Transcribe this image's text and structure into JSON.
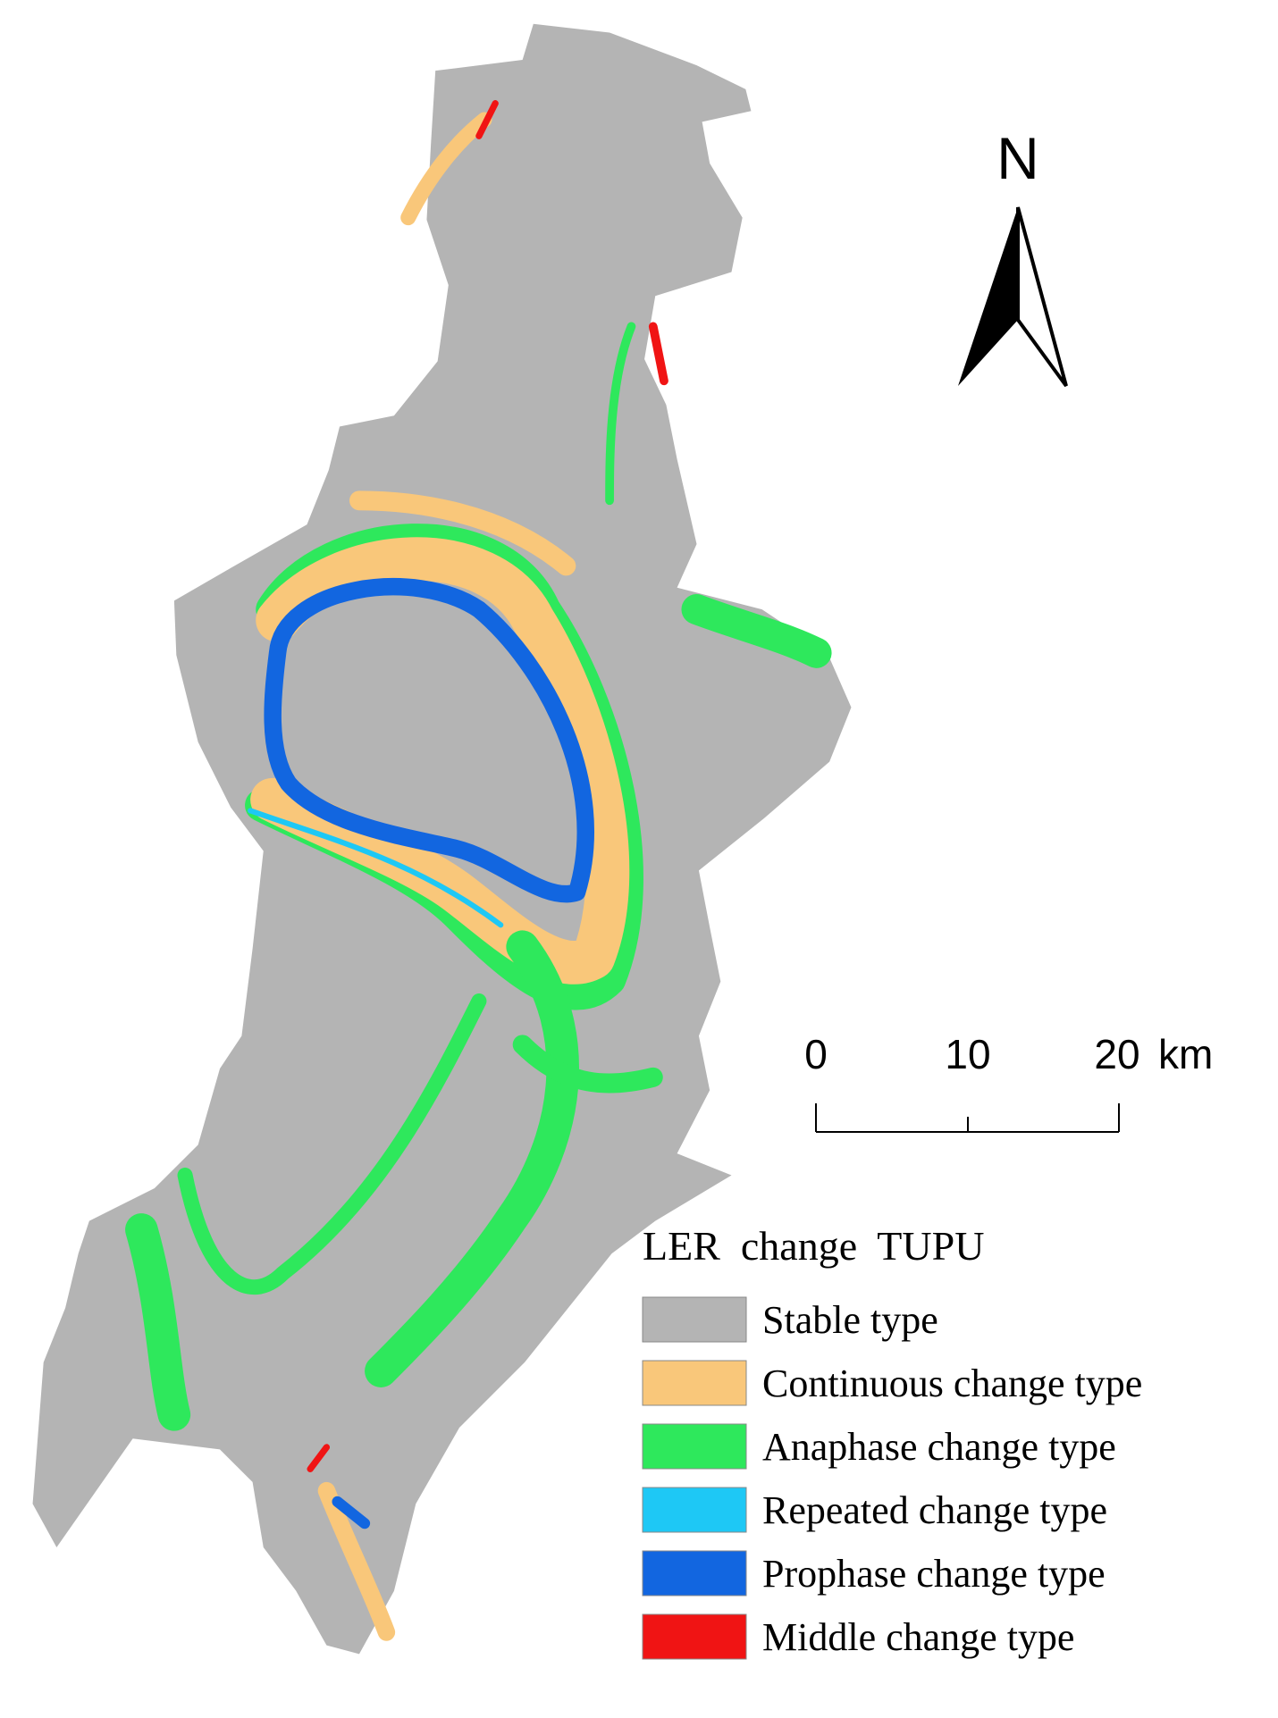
{
  "north": "N",
  "scale_bar": {
    "labels": [
      "0",
      "10",
      "20"
    ],
    "unit": "km"
  },
  "legend": {
    "title": "LER  change  TUPU",
    "items": [
      {
        "label": "Stable type",
        "color": "#b4b4b4"
      },
      {
        "label": "Continuous change type",
        "color": "#f9c77a"
      },
      {
        "label": "Anaphase change type",
        "color": "#2ee85c"
      },
      {
        "label": "Repeated change type",
        "color": "#1ec8f5"
      },
      {
        "label": "Prophase change type",
        "color": "#1266e0"
      },
      {
        "label": "Middle change type",
        "color": "#f01414"
      }
    ]
  }
}
